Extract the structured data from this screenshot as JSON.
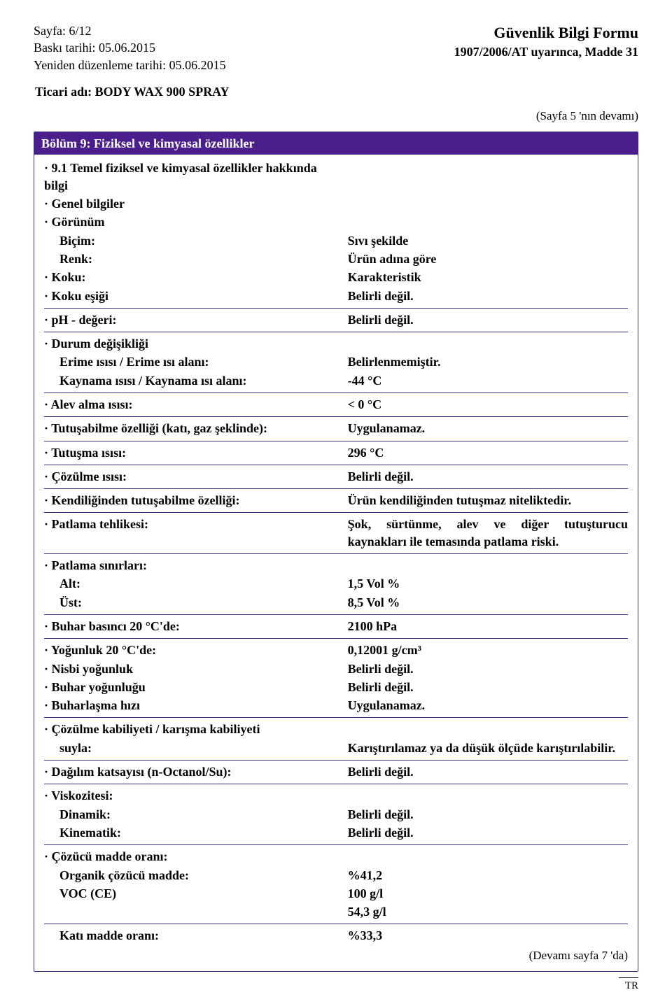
{
  "header": {
    "page_label": "Sayfa: 6/12",
    "print_date_label": "Baskı tarihi: 05.06.2015",
    "revision_label": "Yeniden düzenleme tarihi: 05.06.2015",
    "form_title": "Güvenlik Bilgi Formu",
    "regulation": "1907/2006/AT uyarınca, Madde 31"
  },
  "trade_name_label": "Ticari adı: BODY WAX 900 SPRAY",
  "continuation_top": "(Sayfa 5 'nın devamı)",
  "section_title": "Bölüm 9: Fiziksel ve kimyasal özellikler",
  "rows": {
    "r1": "9.1 Temel fiziksel ve kimyasal özellikler hakkında bilgi",
    "r2": "Genel bilgiler",
    "r3": "Görünüm",
    "r4_l": "Biçim:",
    "r4_v": "Sıvı şekilde",
    "r5_l": "Renk:",
    "r5_v": "Ürün adına göre",
    "r6_l": "Koku:",
    "r6_v": "Karakteristik",
    "r7_l": "Koku eşiği",
    "r7_v": "Belirli değil.",
    "r8_l": "pH - değeri:",
    "r8_v": "Belirli değil.",
    "r9": "Durum değişikliği",
    "r10_l": "Erime ısısı / Erime ısı alanı:",
    "r10_v": "Belirlenmemiştir.",
    "r11_l": "Kaynama ısısı / Kaynama ısı alanı:",
    "r11_v": "-44 °C",
    "r12_l": "Alev alma ısısı:",
    "r12_v": "< 0 °C",
    "r13_l": "Tutuşabilme özelliği (katı, gaz şeklinde):",
    "r13_v": "Uygulanamaz.",
    "r14_l": "Tutuşma ısısı:",
    "r14_v": "296 °C",
    "r15_l": "Çözülme ısısı:",
    "r15_v": "Belirli değil.",
    "r16_l": "Kendiliğinden tutuşabilme özelliği:",
    "r16_v": "Ürün kendiliğinden tutuşmaz niteliktedir.",
    "r17_l": "Patlama tehlikesi:",
    "r17_v": "Şok, sürtünme, alev ve diğer tutuşturucu kaynakları ile temasında patlama riski.",
    "r18": "Patlama sınırları:",
    "r19_l": "Alt:",
    "r19_v": "1,5 Vol %",
    "r20_l": "Üst:",
    "r20_v": "8,5 Vol %",
    "r21_l": "Buhar basıncı 20 °C'de:",
    "r21_v": "2100 hPa",
    "r22_l": "Yoğunluk 20 °C'de:",
    "r22_v": "0,12001 g/cm³",
    "r23_l": "Nisbi yoğunluk",
    "r23_v": "Belirli değil.",
    "r24_l": "Buhar yoğunluğu",
    "r24_v": "Belirli değil.",
    "r25_l": "Buharlaşma hızı",
    "r25_v": "Uygulanamaz.",
    "r26": "Çözülme kabiliyeti / karışma kabiliyeti",
    "r27_l": "suyla:",
    "r27_v": "Karıştırılamaz ya da düşük ölçüde karıştırılabilir.",
    "r28_l": "Dağılım katsayısı (n-Octanol/Su):",
    "r28_v": "Belirli değil.",
    "r29": "Viskozitesi:",
    "r30_l": "Dinamik:",
    "r30_v": "Belirli değil.",
    "r31_l": "Kinematik:",
    "r31_v": "Belirli değil.",
    "r32": "Çözücü madde oranı:",
    "r33_l": "Organik çözücü madde:",
    "r33_v": "%41,2",
    "r34_l": "VOC (CE)",
    "r34_v": "100 g/l",
    "r35_v": "54,3 g/l",
    "r36_l": "Katı madde oranı:",
    "r36_v": "%33,3"
  },
  "continuation_bottom": "(Devamı sayfa 7 'da)",
  "lang_marker": "TR"
}
